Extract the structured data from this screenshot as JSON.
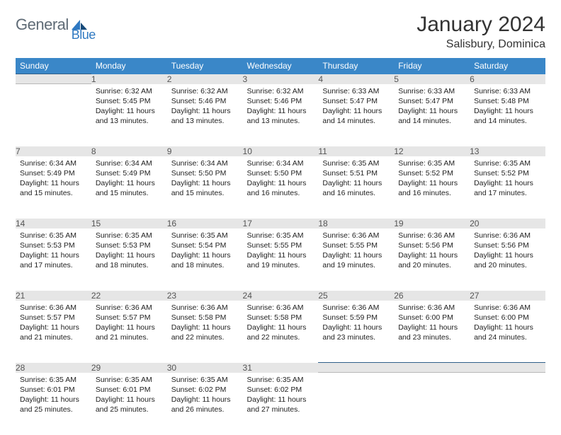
{
  "brand": {
    "word1": "General",
    "word2": "Blue"
  },
  "title": {
    "month": "January 2024",
    "location": "Salisbury, Dominica"
  },
  "colors": {
    "header_bg": "#3a87c8",
    "rule": "#2f5f8a",
    "daynum_bg": "#e6e6e6",
    "text": "#333333",
    "logo_gray": "#5f6b76",
    "logo_blue": "#2f79c2"
  },
  "weekdays": [
    "Sunday",
    "Monday",
    "Tuesday",
    "Wednesday",
    "Thursday",
    "Friday",
    "Saturday"
  ],
  "weeks": [
    [
      null,
      {
        "n": "1",
        "sunrise": "6:32 AM",
        "sunset": "5:45 PM",
        "daylight": "11 hours and 13 minutes."
      },
      {
        "n": "2",
        "sunrise": "6:32 AM",
        "sunset": "5:46 PM",
        "daylight": "11 hours and 13 minutes."
      },
      {
        "n": "3",
        "sunrise": "6:32 AM",
        "sunset": "5:46 PM",
        "daylight": "11 hours and 13 minutes."
      },
      {
        "n": "4",
        "sunrise": "6:33 AM",
        "sunset": "5:47 PM",
        "daylight": "11 hours and 14 minutes."
      },
      {
        "n": "5",
        "sunrise": "6:33 AM",
        "sunset": "5:47 PM",
        "daylight": "11 hours and 14 minutes."
      },
      {
        "n": "6",
        "sunrise": "6:33 AM",
        "sunset": "5:48 PM",
        "daylight": "11 hours and 14 minutes."
      }
    ],
    [
      {
        "n": "7",
        "sunrise": "6:34 AM",
        "sunset": "5:49 PM",
        "daylight": "11 hours and 15 minutes."
      },
      {
        "n": "8",
        "sunrise": "6:34 AM",
        "sunset": "5:49 PM",
        "daylight": "11 hours and 15 minutes."
      },
      {
        "n": "9",
        "sunrise": "6:34 AM",
        "sunset": "5:50 PM",
        "daylight": "11 hours and 15 minutes."
      },
      {
        "n": "10",
        "sunrise": "6:34 AM",
        "sunset": "5:50 PM",
        "daylight": "11 hours and 16 minutes."
      },
      {
        "n": "11",
        "sunrise": "6:35 AM",
        "sunset": "5:51 PM",
        "daylight": "11 hours and 16 minutes."
      },
      {
        "n": "12",
        "sunrise": "6:35 AM",
        "sunset": "5:52 PM",
        "daylight": "11 hours and 16 minutes."
      },
      {
        "n": "13",
        "sunrise": "6:35 AM",
        "sunset": "5:52 PM",
        "daylight": "11 hours and 17 minutes."
      }
    ],
    [
      {
        "n": "14",
        "sunrise": "6:35 AM",
        "sunset": "5:53 PM",
        "daylight": "11 hours and 17 minutes."
      },
      {
        "n": "15",
        "sunrise": "6:35 AM",
        "sunset": "5:53 PM",
        "daylight": "11 hours and 18 minutes."
      },
      {
        "n": "16",
        "sunrise": "6:35 AM",
        "sunset": "5:54 PM",
        "daylight": "11 hours and 18 minutes."
      },
      {
        "n": "17",
        "sunrise": "6:35 AM",
        "sunset": "5:55 PM",
        "daylight": "11 hours and 19 minutes."
      },
      {
        "n": "18",
        "sunrise": "6:36 AM",
        "sunset": "5:55 PM",
        "daylight": "11 hours and 19 minutes."
      },
      {
        "n": "19",
        "sunrise": "6:36 AM",
        "sunset": "5:56 PM",
        "daylight": "11 hours and 20 minutes."
      },
      {
        "n": "20",
        "sunrise": "6:36 AM",
        "sunset": "5:56 PM",
        "daylight": "11 hours and 20 minutes."
      }
    ],
    [
      {
        "n": "21",
        "sunrise": "6:36 AM",
        "sunset": "5:57 PM",
        "daylight": "11 hours and 21 minutes."
      },
      {
        "n": "22",
        "sunrise": "6:36 AM",
        "sunset": "5:57 PM",
        "daylight": "11 hours and 21 minutes."
      },
      {
        "n": "23",
        "sunrise": "6:36 AM",
        "sunset": "5:58 PM",
        "daylight": "11 hours and 22 minutes."
      },
      {
        "n": "24",
        "sunrise": "6:36 AM",
        "sunset": "5:58 PM",
        "daylight": "11 hours and 22 minutes."
      },
      {
        "n": "25",
        "sunrise": "6:36 AM",
        "sunset": "5:59 PM",
        "daylight": "11 hours and 23 minutes."
      },
      {
        "n": "26",
        "sunrise": "6:36 AM",
        "sunset": "6:00 PM",
        "daylight": "11 hours and 23 minutes."
      },
      {
        "n": "27",
        "sunrise": "6:36 AM",
        "sunset": "6:00 PM",
        "daylight": "11 hours and 24 minutes."
      }
    ],
    [
      {
        "n": "28",
        "sunrise": "6:35 AM",
        "sunset": "6:01 PM",
        "daylight": "11 hours and 25 minutes."
      },
      {
        "n": "29",
        "sunrise": "6:35 AM",
        "sunset": "6:01 PM",
        "daylight": "11 hours and 25 minutes."
      },
      {
        "n": "30",
        "sunrise": "6:35 AM",
        "sunset": "6:02 PM",
        "daylight": "11 hours and 26 minutes."
      },
      {
        "n": "31",
        "sunrise": "6:35 AM",
        "sunset": "6:02 PM",
        "daylight": "11 hours and 27 minutes."
      },
      null,
      null,
      null
    ]
  ],
  "labels": {
    "sunrise": "Sunrise: ",
    "sunset": "Sunset: ",
    "daylight": "Daylight: "
  }
}
